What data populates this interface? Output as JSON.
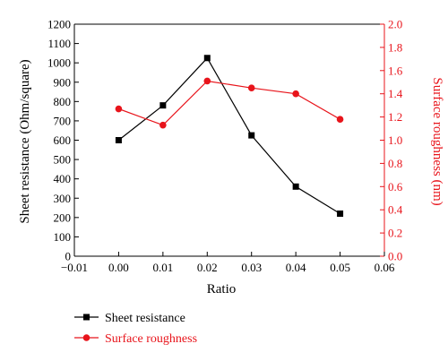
{
  "chart_data": {
    "type": "line",
    "title": "",
    "xlabel": "Ratio",
    "ylabel_left": "Sheet resistance (Ohm/square)",
    "ylabel_right": "Surface roughness (nm)",
    "xlim": [
      -0.01,
      0.06
    ],
    "ylim_left": [
      0,
      1200
    ],
    "ylim_right": [
      0,
      2.0
    ],
    "x_ticks": [
      "−0.01",
      "0.00",
      "0.01",
      "0.02",
      "0.03",
      "0.04",
      "0.05",
      "0.06"
    ],
    "y_left_ticks": [
      "0",
      "100",
      "200",
      "300",
      "400",
      "500",
      "600",
      "700",
      "800",
      "900",
      "1000",
      "1100",
      "1200"
    ],
    "y_right_ticks": [
      "0.0",
      "0.2",
      "0.4",
      "0.6",
      "0.8",
      "1.0",
      "1.2",
      "1.4",
      "1.6",
      "1.8",
      "2.0"
    ],
    "grid": false,
    "legend_position": "below-left",
    "series": [
      {
        "name": "Sheet resistance",
        "axis": "left",
        "color": "#000000",
        "marker": "square",
        "x": [
          0.0,
          0.01,
          0.02,
          0.03,
          0.04,
          0.05
        ],
        "y": [
          600,
          780,
          1025,
          625,
          360,
          220
        ]
      },
      {
        "name": "Surface roughness",
        "axis": "right",
        "color": "#e8141b",
        "marker": "circle",
        "x": [
          0.0,
          0.01,
          0.02,
          0.03,
          0.04,
          0.05
        ],
        "y": [
          1.27,
          1.13,
          1.51,
          1.45,
          1.4,
          1.18
        ]
      }
    ]
  }
}
